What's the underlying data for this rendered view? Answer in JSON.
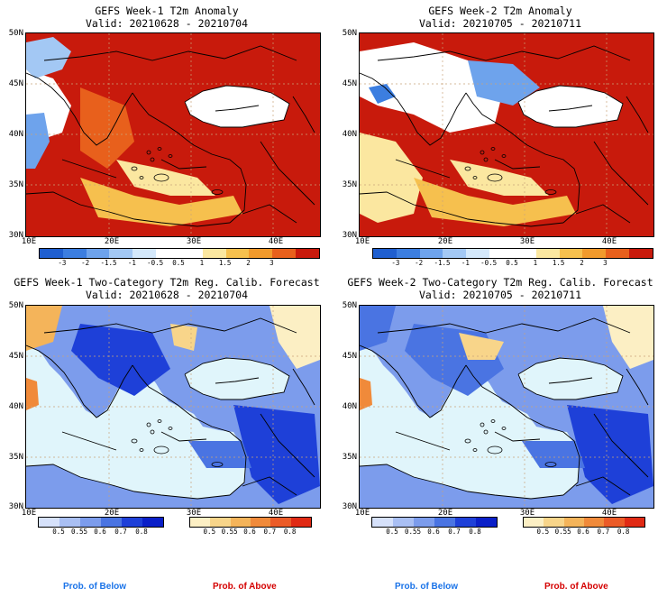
{
  "panels": [
    {
      "title": "GEFS Week-1 T2m Anomaly",
      "valid": "Valid: 20210628 - 20210704",
      "kind": "anomaly",
      "field": "warm1"
    },
    {
      "title": "GEFS Week-2 T2m Anomaly",
      "valid": "Valid: 20210705 - 20210711",
      "kind": "anomaly",
      "field": "warm2"
    },
    {
      "title": "GEFS Week-1 Two-Category T2m Reg. Calib. Forecast",
      "valid": "Valid: 20210628 - 20210704",
      "kind": "prob",
      "field": "prob1"
    },
    {
      "title": "GEFS Week-2 Two-Category T2m Reg. Calib. Forecast",
      "valid": "Valid: 20210705 - 20210711",
      "kind": "prob",
      "field": "prob2"
    }
  ],
  "lat_labels": [
    "50N",
    "45N",
    "40N",
    "35N",
    "30N"
  ],
  "lon_labels": [
    "10E",
    "20E",
    "30E",
    "40E"
  ],
  "anomaly_colorbar": {
    "ticks": [
      "-3",
      "-2",
      "-1.5",
      "-1",
      "-0.5",
      "0.5",
      "1",
      "1.5",
      "2",
      "3"
    ],
    "colors": [
      "#1f5fd0",
      "#3c7ee0",
      "#6ea3ec",
      "#a3c8f4",
      "#d4e8fb",
      "#ffffff",
      "#ffffff",
      "#fbe7a0",
      "#f6c04e",
      "#f19a2c",
      "#e8601c",
      "#c81a0c"
    ]
  },
  "prob_colorbar_below": {
    "ticks": [
      "0.5",
      "0.55",
      "0.6",
      "0.7",
      "0.8"
    ],
    "colors": [
      "#d6e1fa",
      "#a9bff3",
      "#7c9cec",
      "#4a74e2",
      "#1e40d8",
      "#0a1fc8"
    ]
  },
  "prob_colorbar_above": {
    "ticks": [
      "0.5",
      "0.55",
      "0.6",
      "0.7",
      "0.8"
    ],
    "colors": [
      "#fcefc4",
      "#f8d58a",
      "#f4b45a",
      "#f08a3a",
      "#eb5b27",
      "#e02a14"
    ]
  },
  "legend": {
    "below_label": "Prob. of Below",
    "above_label": "Prob. of Above",
    "below_color": "#1a73e8",
    "above_color": "#d40000"
  },
  "colors": {
    "sea_prob": "#e0f5fb",
    "coast": "#000000",
    "grid": "#c9a47a"
  }
}
